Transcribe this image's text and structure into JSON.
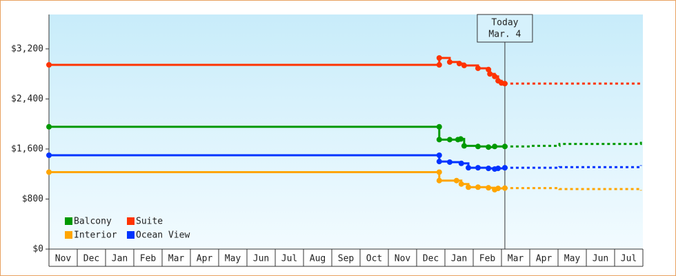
{
  "chart_data": {
    "type": "line",
    "step": true,
    "xlim": [
      0,
      21
    ],
    "ylim": [
      0,
      3750
    ],
    "xticks": [
      {
        "value": 0.5,
        "label": "Nov"
      },
      {
        "value": 1.5,
        "label": "Dec"
      },
      {
        "value": 2.5,
        "label": "Jan"
      },
      {
        "value": 3.5,
        "label": "Feb"
      },
      {
        "value": 4.5,
        "label": "Mar"
      },
      {
        "value": 5.5,
        "label": "Apr"
      },
      {
        "value": 6.5,
        "label": "May"
      },
      {
        "value": 7.5,
        "label": "Jun"
      },
      {
        "value": 8.5,
        "label": "Jul"
      },
      {
        "value": 9.5,
        "label": "Aug"
      },
      {
        "value": 10.5,
        "label": "Sep"
      },
      {
        "value": 11.5,
        "label": "Oct"
      },
      {
        "value": 12.5,
        "label": "Nov"
      },
      {
        "value": 13.5,
        "label": "Dec"
      },
      {
        "value": 14.5,
        "label": "Jan"
      },
      {
        "value": 15.5,
        "label": "Feb"
      },
      {
        "value": 16.5,
        "label": "Mar"
      },
      {
        "value": 17.5,
        "label": "Apr"
      },
      {
        "value": 18.5,
        "label": "May"
      },
      {
        "value": 19.5,
        "label": "Jun"
      },
      {
        "value": 20.5,
        "label": "Jul"
      }
    ],
    "yticks": [
      {
        "value": 0,
        "label": "$0"
      },
      {
        "value": 800,
        "label": "$800"
      },
      {
        "value": 1600,
        "label": "$1,600"
      },
      {
        "value": 2400,
        "label": "$2,400"
      },
      {
        "value": 3200,
        "label": "$3,200"
      }
    ],
    "today": {
      "x": 16.12,
      "label": "Today",
      "date": "Mar. 4"
    },
    "series": [
      {
        "name": "Balcony",
        "color": "#009900",
        "x": [
          0,
          13.8,
          13.8,
          14.17,
          14.46,
          14.56,
          14.68,
          15.17,
          15.54,
          15.76,
          16.12
        ],
        "values": [
          1955,
          1955,
          1750,
          1750,
          1750,
          1760,
          1650,
          1640,
          1630,
          1640,
          1640
        ],
        "forecast_x": [
          16.12,
          17.07,
          18.05,
          20.93
        ],
        "forecast_values": [
          1640,
          1650,
          1680,
          1720
        ]
      },
      {
        "name": "Suite",
        "color": "#ff3300",
        "x": [
          0,
          13.8,
          13.8,
          14.17,
          14.51,
          14.68,
          15.17,
          15.54,
          15.59,
          15.76,
          15.88,
          16.0,
          16.12
        ],
        "values": [
          2945,
          2945,
          3055,
          2990,
          2965,
          2935,
          2890,
          2870,
          2800,
          2760,
          2690,
          2655,
          2645
        ],
        "forecast_x": [
          16.12,
          20.93
        ],
        "forecast_values": [
          2645,
          2635
        ]
      },
      {
        "name": "Interior",
        "color": "#ffa500",
        "x": [
          0,
          13.8,
          13.8,
          14.41,
          14.58,
          14.83,
          15.17,
          15.54,
          15.76,
          15.88,
          16.12
        ],
        "values": [
          1230,
          1230,
          1095,
          1095,
          1040,
          990,
          990,
          980,
          950,
          970,
          975
        ],
        "forecast_x": [
          16.12,
          18.05,
          20.93
        ],
        "forecast_values": [
          975,
          960,
          935
        ]
      },
      {
        "name": "Ocean View",
        "color": "#0033ff",
        "x": [
          0,
          13.8,
          13.8,
          14.17,
          14.58,
          14.83,
          15.17,
          15.54,
          15.76,
          15.88,
          16.12
        ],
        "values": [
          1500,
          1500,
          1400,
          1390,
          1370,
          1300,
          1300,
          1290,
          1280,
          1290,
          1300
        ],
        "forecast_x": [
          16.12,
          18.05,
          20.93
        ],
        "forecast_values": [
          1300,
          1310,
          1340
        ]
      }
    ]
  }
}
